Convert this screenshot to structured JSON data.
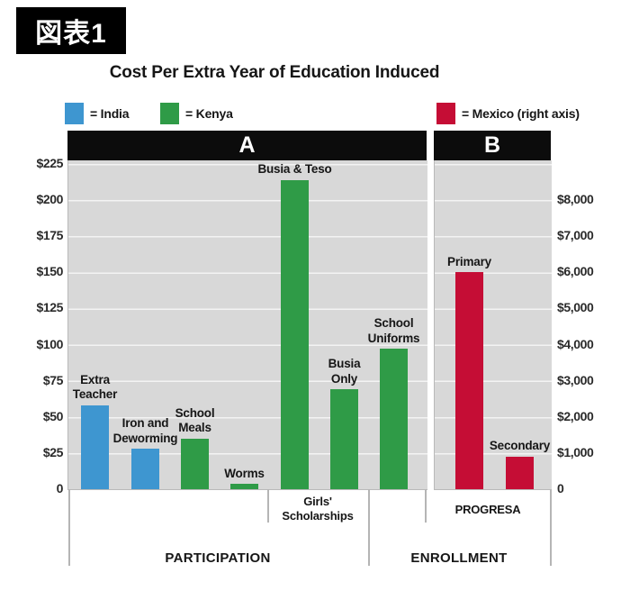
{
  "figure_tag": "図表1",
  "title": "Cost Per Extra Year of Education Induced",
  "legend": {
    "items": [
      {
        "country": "India",
        "label": "= India",
        "swatch_color": "#3e96d0"
      },
      {
        "country": "Kenya",
        "label": "= Kenya",
        "swatch_color": "#2f9b47"
      },
      {
        "country": "Mexico",
        "label": "= Mexico (right axis)",
        "swatch_color": "#c50d35"
      }
    ]
  },
  "panel_headers": {
    "a": "A",
    "b": "B"
  },
  "axes": {
    "left_ticks": [
      "$225",
      "$200",
      "$175",
      "$150",
      "$125",
      "$100",
      "$75",
      "$50",
      "$25",
      "0"
    ],
    "right_ticks": [
      "$8,000",
      "$7,000",
      "$6,000",
      "$5,000",
      "$4,000",
      "$3,000",
      "$2,000",
      "$1,000",
      "0"
    ]
  },
  "sections": {
    "participation": "PARTICIPATION",
    "enrollment": "ENROLLMENT",
    "girls_scholarships": "Girls'\nScholarships",
    "progresa": "PROGRESA"
  },
  "chart_data": {
    "type": "bar",
    "title": "Cost Per Extra Year of Education Induced",
    "left_axis": {
      "ylim": [
        0,
        225
      ],
      "tick_step": 25,
      "unit": "USD",
      "applies_to": [
        "India",
        "Kenya"
      ]
    },
    "right_axis": {
      "ylim": [
        0,
        9000
      ],
      "tick_step": 1000,
      "unit": "USD",
      "applies_to": [
        "Mexico"
      ]
    },
    "grid": true,
    "legend_position": "top",
    "bars": [
      {
        "label": "Extra\nTeacher",
        "country": "India",
        "axis": "left",
        "value": 58,
        "group": "PARTICIPATION"
      },
      {
        "label": "Iron and\nDeworming",
        "country": "India",
        "axis": "left",
        "value": 28,
        "group": "PARTICIPATION"
      },
      {
        "label": "School\nMeals",
        "country": "Kenya",
        "axis": "left",
        "value": 35,
        "group": "PARTICIPATION"
      },
      {
        "label": "Worms",
        "country": "Kenya",
        "axis": "left",
        "value": 3.5,
        "group": "PARTICIPATION"
      },
      {
        "label": "Busia & Teso",
        "country": "Kenya",
        "axis": "left",
        "value": 214,
        "group": "PARTICIPATION",
        "subgroup": "Girls' Scholarships"
      },
      {
        "label": "Busia\nOnly",
        "country": "Kenya",
        "axis": "left",
        "value": 69,
        "group": "PARTICIPATION",
        "subgroup": "Girls' Scholarships"
      },
      {
        "label": "School\nUniforms",
        "country": "Kenya",
        "axis": "left",
        "value": 97,
        "group": "ENROLLMENT"
      },
      {
        "label": "Primary",
        "country": "Mexico",
        "axis": "right",
        "value": 6000,
        "group": "ENROLLMENT",
        "subgroup": "PROGRESA"
      },
      {
        "label": "Secondary",
        "country": "Mexico",
        "axis": "right",
        "value": 900,
        "group": "ENROLLMENT",
        "subgroup": "PROGRESA"
      }
    ],
    "panels": [
      {
        "label": "A",
        "axis": "left"
      },
      {
        "label": "B",
        "axis": "right"
      }
    ]
  }
}
